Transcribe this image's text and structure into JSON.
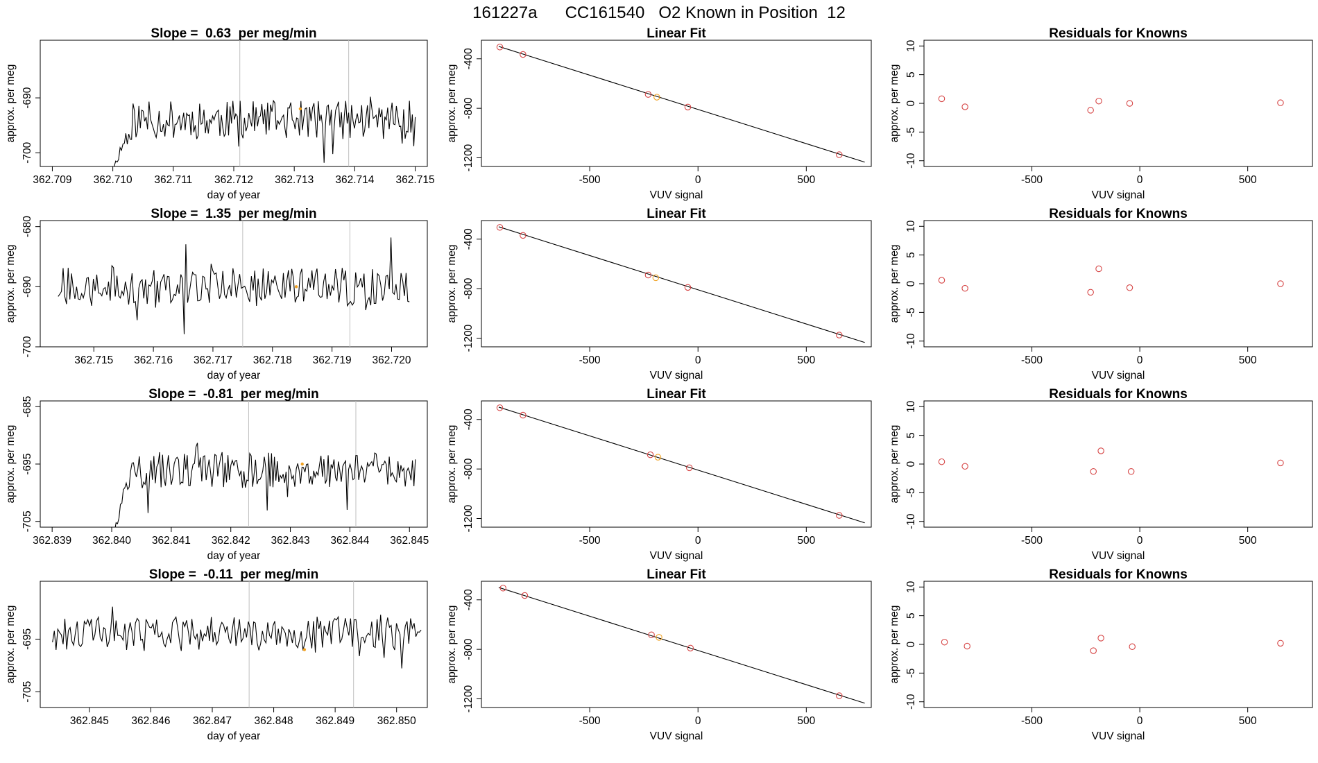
{
  "suptitle": "161227a      CC161540   O2 Known in Position  12",
  "colors": {
    "known_point": "#d64545",
    "unknown_point": "#f0a020",
    "marker_line": "#bfbfbf",
    "line": "#000000"
  },
  "chart_data": [
    {
      "row": 1,
      "time": {
        "type": "line",
        "title": "Slope =  0.63  per meg/min",
        "xlabel": "day of year",
        "ylabel": "approx. per meg",
        "xlim": [
          362.7088,
          362.7152
        ],
        "ylim": [
          -702.5,
          -679.5
        ],
        "xticks": [
          "362.709",
          "362.710",
          "362.711",
          "362.712",
          "362.713",
          "362.714",
          "362.715"
        ],
        "yticks": [
          "-690",
          "-700"
        ],
        "vlines": [
          362.7121,
          362.7139
        ],
        "marker": {
          "x": 362.7131,
          "y": -692
        },
        "x_start": 362.71,
        "x_end": 362.715,
        "baseline": -694,
        "noise": 3.5,
        "seed": 11,
        "start_low": -703
      },
      "fit": {
        "type": "scatter",
        "title": "Linear Fit",
        "xlabel": "VUV signal",
        "ylabel": "approx. per meg",
        "xlim": [
          -1000,
          800
        ],
        "ylim": [
          -1270,
          -250
        ],
        "xticks": [
          "-500",
          "0",
          "500"
        ],
        "yticks": [
          "-400",
          "-800",
          "-1200"
        ],
        "line": {
          "x": [
            -920,
            770
          ],
          "y": [
            -300,
            -1235
          ]
        },
        "knowns": {
          "x": [
            -915,
            -808,
            -230,
            -47,
            652
          ],
          "y": [
            -305,
            -365,
            -688,
            -790,
            -1175
          ]
        },
        "unknown": {
          "x": [
            -190
          ],
          "y": [
            -710
          ]
        }
      },
      "resid": {
        "type": "scatter",
        "title": "Residuals for Knowns",
        "xlabel": "VUV signal",
        "ylabel": "approx. per meg",
        "xlim": [
          -1000,
          800
        ],
        "ylim": [
          -11,
          11
        ],
        "xticks": [
          "-500",
          "0",
          "500"
        ],
        "yticks": [
          "10",
          "5",
          "0",
          "-5",
          "-10"
        ],
        "points": {
          "x": [
            -918,
            -810,
            -228,
            -190,
            -47,
            652
          ],
          "y": [
            0.8,
            -0.6,
            -1.2,
            0.4,
            0.0,
            0.1
          ]
        }
      }
    },
    {
      "row": 2,
      "time": {
        "type": "line",
        "title": "Slope =  1.35  per meg/min",
        "xlabel": "day of year",
        "ylabel": "approx. per meg",
        "xlim": [
          362.7141,
          362.7206
        ],
        "ylim": [
          -700,
          -679
        ],
        "xticks": [
          "362.715",
          "362.716",
          "362.717",
          "362.718",
          "362.719",
          "362.720"
        ],
        "yticks": [
          "-680",
          "-690",
          "-700"
        ],
        "vlines": [
          362.7175,
          362.7193
        ],
        "marker": {
          "x": 362.7184,
          "y": -690
        },
        "x_start": 362.7144,
        "x_end": 362.7203,
        "baseline": -690,
        "noise": 3.2,
        "seed": 27,
        "start_low": null
      },
      "fit": {
        "type": "scatter",
        "title": "Linear Fit",
        "xlabel": "VUV signal",
        "ylabel": "approx. per meg",
        "xlim": [
          -1000,
          800
        ],
        "ylim": [
          -1270,
          -250
        ],
        "xticks": [
          "-500",
          "0",
          "500"
        ],
        "yticks": [
          "-400",
          "-800",
          "-1200"
        ],
        "line": {
          "x": [
            -920,
            770
          ],
          "y": [
            -300,
            -1235
          ]
        },
        "knowns": {
          "x": [
            -915,
            -808,
            -230,
            -47,
            652
          ],
          "y": [
            -305,
            -370,
            -690,
            -790,
            -1175
          ]
        },
        "unknown": {
          "x": [
            -195
          ],
          "y": [
            -712
          ]
        }
      },
      "resid": {
        "type": "scatter",
        "title": "Residuals for Knowns",
        "xlabel": "VUV signal",
        "ylabel": "approx. per meg",
        "xlim": [
          -1000,
          800
        ],
        "ylim": [
          -11,
          11
        ],
        "xticks": [
          "-500",
          "0",
          "500"
        ],
        "yticks": [
          "10",
          "5",
          "0",
          "-5",
          "-10"
        ],
        "points": {
          "x": [
            -918,
            -810,
            -228,
            -190,
            -47,
            652
          ],
          "y": [
            0.6,
            -0.8,
            -1.5,
            2.6,
            -0.7,
            0.0
          ]
        }
      }
    },
    {
      "row": 3,
      "time": {
        "type": "line",
        "title": "Slope =  -0.81  per meg/min",
        "xlabel": "day of year",
        "ylabel": "approx. per meg",
        "xlim": [
          362.8388,
          362.8453
        ],
        "ylim": [
          -706,
          -684
        ],
        "xticks": [
          "362.839",
          "362.840",
          "362.841",
          "362.842",
          "362.843",
          "362.844",
          "362.845"
        ],
        "yticks": [
          "-685",
          "-695",
          "-705"
        ],
        "vlines": [
          362.8423,
          362.8441
        ],
        "marker": {
          "x": 362.8432,
          "y": -695
        },
        "x_start": 362.84,
        "x_end": 362.8451,
        "baseline": -696,
        "noise": 3.2,
        "seed": 43,
        "start_low": -708
      },
      "fit": {
        "type": "scatter",
        "title": "Linear Fit",
        "xlabel": "VUV signal",
        "ylabel": "approx. per meg",
        "xlim": [
          -1000,
          800
        ],
        "ylim": [
          -1270,
          -250
        ],
        "xticks": [
          "-500",
          "0",
          "500"
        ],
        "yticks": [
          "-400",
          "-800",
          "-1200"
        ],
        "line": {
          "x": [
            -920,
            770
          ],
          "y": [
            -300,
            -1235
          ]
        },
        "knowns": {
          "x": [
            -915,
            -808,
            -220,
            -40,
            652
          ],
          "y": [
            -305,
            -365,
            -685,
            -790,
            -1175
          ]
        },
        "unknown": {
          "x": [
            -185
          ],
          "y": [
            -705
          ]
        }
      },
      "resid": {
        "type": "scatter",
        "title": "Residuals for Knowns",
        "xlabel": "VUV signal",
        "ylabel": "approx. per meg",
        "xlim": [
          -1000,
          800
        ],
        "ylim": [
          -11,
          11
        ],
        "xticks": [
          "-500",
          "0",
          "500"
        ],
        "yticks": [
          "10",
          "5",
          "0",
          "-5",
          "-10"
        ],
        "points": {
          "x": [
            -918,
            -810,
            -215,
            -180,
            -40,
            652
          ],
          "y": [
            0.4,
            -0.4,
            -1.3,
            2.3,
            -1.3,
            0.2
          ]
        }
      }
    },
    {
      "row": 4,
      "time": {
        "type": "line",
        "title": "Slope =  -0.11  per meg/min",
        "xlabel": "day of year",
        "ylabel": "approx. per meg",
        "xlim": [
          362.8442,
          362.8505
        ],
        "ylim": [
          -708,
          -684
        ],
        "xticks": [
          "362.845",
          "362.846",
          "362.847",
          "362.848",
          "362.849",
          "362.850"
        ],
        "yticks": [
          "-695",
          "-705"
        ],
        "vlines": [
          362.8476,
          362.8493
        ],
        "marker": {
          "x": 362.8485,
          "y": -697
        },
        "x_start": 362.8444,
        "x_end": 362.8504,
        "baseline": -694,
        "noise": 3.3,
        "seed": 61,
        "start_low": null
      },
      "fit": {
        "type": "scatter",
        "title": "Linear Fit",
        "xlabel": "VUV signal",
        "ylabel": "approx. per meg",
        "xlim": [
          -1000,
          800
        ],
        "ylim": [
          -1270,
          -250
        ],
        "xticks": [
          "-500",
          "0",
          "500"
        ],
        "yticks": [
          "-400",
          "-800",
          "-1200"
        ],
        "line": {
          "x": [
            -920,
            770
          ],
          "y": [
            -300,
            -1235
          ]
        },
        "knowns": {
          "x": [
            -900,
            -800,
            -215,
            -35,
            652
          ],
          "y": [
            -305,
            -365,
            -683,
            -790,
            -1175
          ]
        },
        "unknown": {
          "x": [
            -180
          ],
          "y": [
            -703
          ]
        }
      },
      "resid": {
        "type": "scatter",
        "title": "Residuals for Knowns",
        "xlabel": "VUV signal",
        "ylabel": "approx. per meg",
        "xlim": [
          -1000,
          800
        ],
        "ylim": [
          -11,
          11
        ],
        "xticks": [
          "-500",
          "0",
          "500"
        ],
        "yticks": [
          "10",
          "5",
          "0",
          "-5",
          "-10"
        ],
        "points": {
          "x": [
            -905,
            -800,
            -215,
            -180,
            -35,
            652
          ],
          "y": [
            0.4,
            -0.3,
            -1.1,
            1.1,
            -0.4,
            0.2
          ]
        }
      }
    }
  ]
}
